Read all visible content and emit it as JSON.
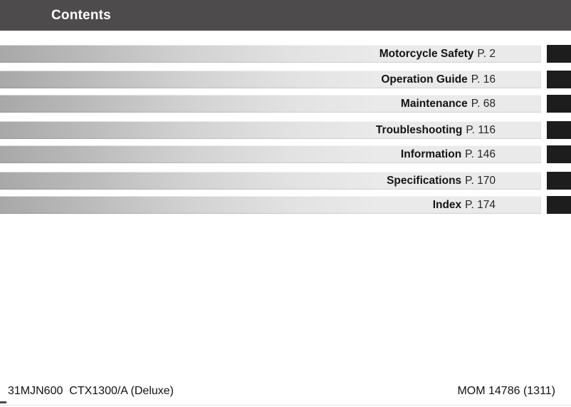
{
  "header": {
    "title": "Contents",
    "bg_color": "#4e4b4c",
    "text_color": "#ffffff"
  },
  "toc": {
    "bar_gradient_start": "#a8a8a8",
    "bar_gradient_end": "#eaeaea",
    "tab_color": "#1d1d1d",
    "items": [
      {
        "label": "Motorcycle Safety",
        "page_ref": "P. 2"
      },
      {
        "label": "Operation Guide",
        "page_ref": "P. 16"
      },
      {
        "label": "Maintenance",
        "page_ref": "P. 68"
      },
      {
        "label": "Troubleshooting",
        "page_ref": "P. 116"
      },
      {
        "label": "Information",
        "page_ref": "P. 146"
      },
      {
        "label": "Specifications",
        "page_ref": "P. 170"
      },
      {
        "label": "Index",
        "page_ref": "P. 174"
      }
    ]
  },
  "footer": {
    "left": "31MJN600  CTX1300/A (Deluxe)",
    "right": "MOM 14786 (1311)"
  }
}
